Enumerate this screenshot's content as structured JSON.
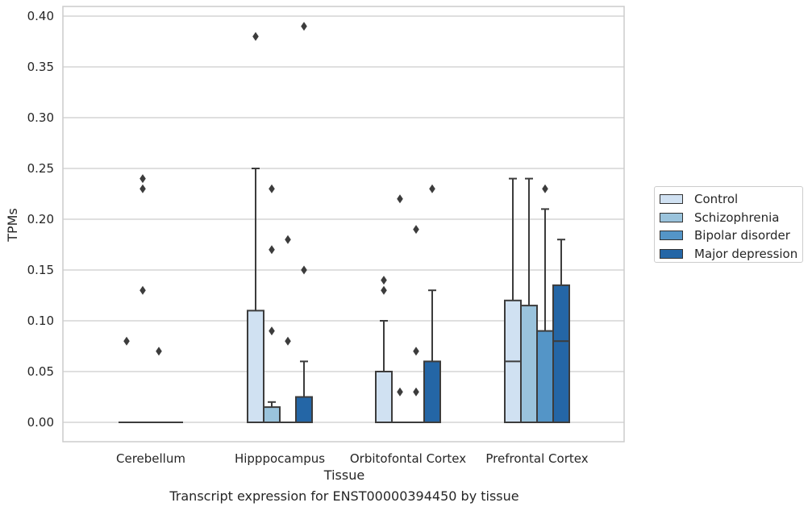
{
  "caption": "Transcript expression for ENST00000394450 by tissue",
  "chart_data": {
    "type": "box",
    "title": "",
    "xlabel": "Tissue",
    "ylabel": "TPMs",
    "ylim": [
      -0.018,
      0.41
    ],
    "yticks": [
      "0.00",
      "0.05",
      "0.10",
      "0.15",
      "0.20",
      "0.25",
      "0.30",
      "0.35",
      "0.40"
    ],
    "ytick_values": [
      0,
      0.05,
      0.1,
      0.15,
      0.2,
      0.25,
      0.3,
      0.35,
      0.4
    ],
    "grid": "horizontal",
    "legend_position": "right",
    "categories": [
      "Cerebellum",
      "Hipppocampus",
      "Orbitofontal Cortex",
      "Prefrontal Cortex"
    ],
    "series": [
      {
        "name": "Control",
        "color": "#d0e1f2",
        "boxes": [
          {
            "q1": 0,
            "median": 0,
            "q3": 0,
            "whisker_low": 0,
            "whisker_high": 0,
            "outliers": [
              0.08
            ]
          },
          {
            "q1": 0,
            "median": 0,
            "q3": 0.11,
            "whisker_low": 0,
            "whisker_high": 0.25,
            "outliers": [
              0.38
            ]
          },
          {
            "q1": 0,
            "median": 0,
            "q3": 0.05,
            "whisker_low": 0,
            "whisker_high": 0.1,
            "outliers": [
              0.13,
              0.14
            ]
          },
          {
            "q1": 0,
            "median": 0.06,
            "q3": 0.12,
            "whisker_low": 0,
            "whisker_high": 0.24,
            "outliers": []
          }
        ]
      },
      {
        "name": "Schizophrenia",
        "color": "#9ac3dc",
        "boxes": [
          {
            "q1": 0,
            "median": 0,
            "q3": 0,
            "whisker_low": 0,
            "whisker_high": 0,
            "outliers": [
              0.13,
              0.23,
              0.24
            ]
          },
          {
            "q1": 0,
            "median": 0,
            "q3": 0.015,
            "whisker_low": 0,
            "whisker_high": 0.02,
            "outliers": [
              0.09,
              0.17,
              0.23
            ]
          },
          {
            "q1": 0,
            "median": 0,
            "q3": 0,
            "whisker_low": 0,
            "whisker_high": 0,
            "outliers": [
              0.03,
              0.22
            ]
          },
          {
            "q1": 0,
            "median": 0,
            "q3": 0.115,
            "whisker_low": 0,
            "whisker_high": 0.24,
            "outliers": []
          }
        ]
      },
      {
        "name": "Bipolar disorder",
        "color": "#5495c7",
        "boxes": [
          {
            "q1": 0,
            "median": 0,
            "q3": 0,
            "whisker_low": 0,
            "whisker_high": 0,
            "outliers": [
              0.07
            ]
          },
          {
            "q1": 0,
            "median": 0,
            "q3": 0,
            "whisker_low": 0,
            "whisker_high": 0,
            "outliers": [
              0.08,
              0.18
            ]
          },
          {
            "q1": 0,
            "median": 0,
            "q3": 0,
            "whisker_low": 0,
            "whisker_high": 0,
            "outliers": [
              0.03,
              0.07,
              0.19
            ]
          },
          {
            "q1": 0,
            "median": 0,
            "q3": 0.09,
            "whisker_low": 0,
            "whisker_high": 0.21,
            "outliers": [
              0.23
            ]
          }
        ]
      },
      {
        "name": "Major depression",
        "color": "#2466a6",
        "boxes": [
          {
            "q1": 0,
            "median": 0,
            "q3": 0,
            "whisker_low": 0,
            "whisker_high": 0,
            "outliers": []
          },
          {
            "q1": 0,
            "median": 0,
            "q3": 0.025,
            "whisker_low": 0,
            "whisker_high": 0.06,
            "outliers": [
              0.15,
              0.39
            ]
          },
          {
            "q1": 0,
            "median": 0,
            "q3": 0.06,
            "whisker_low": 0,
            "whisker_high": 0.13,
            "outliers": [
              0.23
            ]
          },
          {
            "q1": 0,
            "median": 0.08,
            "q3": 0.135,
            "whisker_low": 0,
            "whisker_high": 0.18,
            "outliers": []
          }
        ]
      }
    ]
  }
}
